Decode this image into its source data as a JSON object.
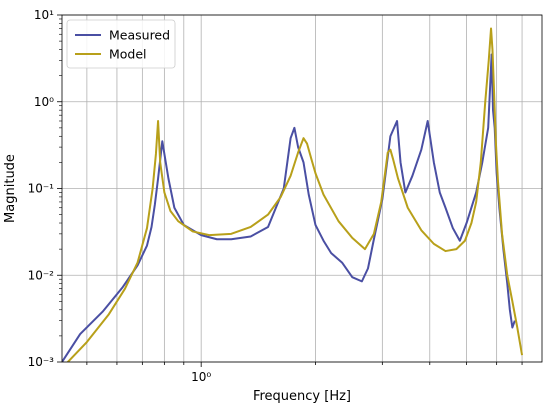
{
  "chart_data": {
    "type": "line",
    "title": "",
    "xlabel": "Frequency [Hz]",
    "ylabel": "Magnitude",
    "xscale": "log",
    "yscale": "log",
    "xlim": [
      0.43,
      7.9
    ],
    "ylim": [
      0.001,
      10
    ],
    "x_tick_labels": [
      {
        "value": 1,
        "label": "10⁰"
      }
    ],
    "y_tick_labels": [
      {
        "value": 0.001,
        "label": "10⁻³"
      },
      {
        "value": 0.01,
        "label": "10⁻²"
      },
      {
        "value": 0.1,
        "label": "10⁻¹"
      },
      {
        "value": 1,
        "label": "10⁰"
      },
      {
        "value": 10,
        "label": "10¹"
      }
    ],
    "x_minor_ticks": [
      0.5,
      0.6,
      0.7,
      0.8,
      0.9,
      2,
      3,
      4,
      5,
      6,
      7
    ],
    "grid": true,
    "legend": {
      "position": "top-left"
    },
    "series": [
      {
        "name": "Measured",
        "color": "#4a4fa3",
        "x": [
          0.43,
          0.48,
          0.55,
          0.62,
          0.68,
          0.72,
          0.74,
          0.755,
          0.77,
          0.79,
          0.82,
          0.85,
          0.9,
          1.0,
          1.1,
          1.2,
          1.35,
          1.5,
          1.65,
          1.72,
          1.76,
          1.8,
          1.86,
          1.92,
          2.0,
          2.1,
          2.2,
          2.35,
          2.5,
          2.65,
          2.75,
          2.85,
          3.0,
          3.15,
          3.28,
          3.35,
          3.45,
          3.6,
          3.8,
          3.95,
          4.1,
          4.25,
          4.4,
          4.6,
          4.8,
          5.0,
          5.3,
          5.5,
          5.7,
          5.82,
          5.87,
          5.93,
          6.0,
          6.1,
          6.25,
          6.4,
          6.5,
          6.6,
          6.7
        ],
        "y": [
          0.001,
          0.0021,
          0.0038,
          0.0072,
          0.013,
          0.022,
          0.036,
          0.065,
          0.13,
          0.35,
          0.13,
          0.06,
          0.038,
          0.029,
          0.026,
          0.026,
          0.028,
          0.036,
          0.1,
          0.38,
          0.5,
          0.3,
          0.2,
          0.085,
          0.038,
          0.025,
          0.018,
          0.014,
          0.0095,
          0.0085,
          0.012,
          0.026,
          0.075,
          0.4,
          0.6,
          0.2,
          0.09,
          0.14,
          0.28,
          0.6,
          0.2,
          0.09,
          0.06,
          0.035,
          0.025,
          0.04,
          0.09,
          0.2,
          0.5,
          3.5,
          0.8,
          0.5,
          0.15,
          0.06,
          0.02,
          0.008,
          0.004,
          0.0025,
          0.003
        ]
      },
      {
        "name": "Model",
        "color": "#b8a01a",
        "x": [
          0.43,
          0.5,
          0.57,
          0.63,
          0.68,
          0.72,
          0.745,
          0.76,
          0.77,
          0.78,
          0.8,
          0.83,
          0.87,
          0.95,
          1.05,
          1.2,
          1.35,
          1.5,
          1.62,
          1.72,
          1.8,
          1.86,
          1.9,
          1.95,
          2.0,
          2.1,
          2.3,
          2.5,
          2.7,
          2.85,
          2.98,
          3.05,
          3.1,
          3.15,
          3.2,
          3.3,
          3.5,
          3.8,
          4.1,
          4.4,
          4.7,
          4.95,
          5.15,
          5.3,
          5.45,
          5.6,
          5.72,
          5.8,
          5.85,
          5.9,
          5.97,
          6.05,
          6.2,
          6.4,
          6.6,
          6.8,
          7.0
        ],
        "y": [
          0.00085,
          0.0017,
          0.0035,
          0.007,
          0.014,
          0.035,
          0.1,
          0.25,
          0.6,
          0.2,
          0.09,
          0.055,
          0.042,
          0.032,
          0.029,
          0.03,
          0.036,
          0.05,
          0.08,
          0.14,
          0.26,
          0.38,
          0.33,
          0.22,
          0.15,
          0.085,
          0.042,
          0.027,
          0.02,
          0.03,
          0.07,
          0.15,
          0.26,
          0.28,
          0.22,
          0.13,
          0.06,
          0.033,
          0.023,
          0.019,
          0.02,
          0.025,
          0.04,
          0.07,
          0.2,
          1.0,
          3.0,
          7.0,
          4.0,
          1.5,
          0.35,
          0.12,
          0.03,
          0.01,
          0.005,
          0.0025,
          0.0012
        ]
      }
    ]
  }
}
